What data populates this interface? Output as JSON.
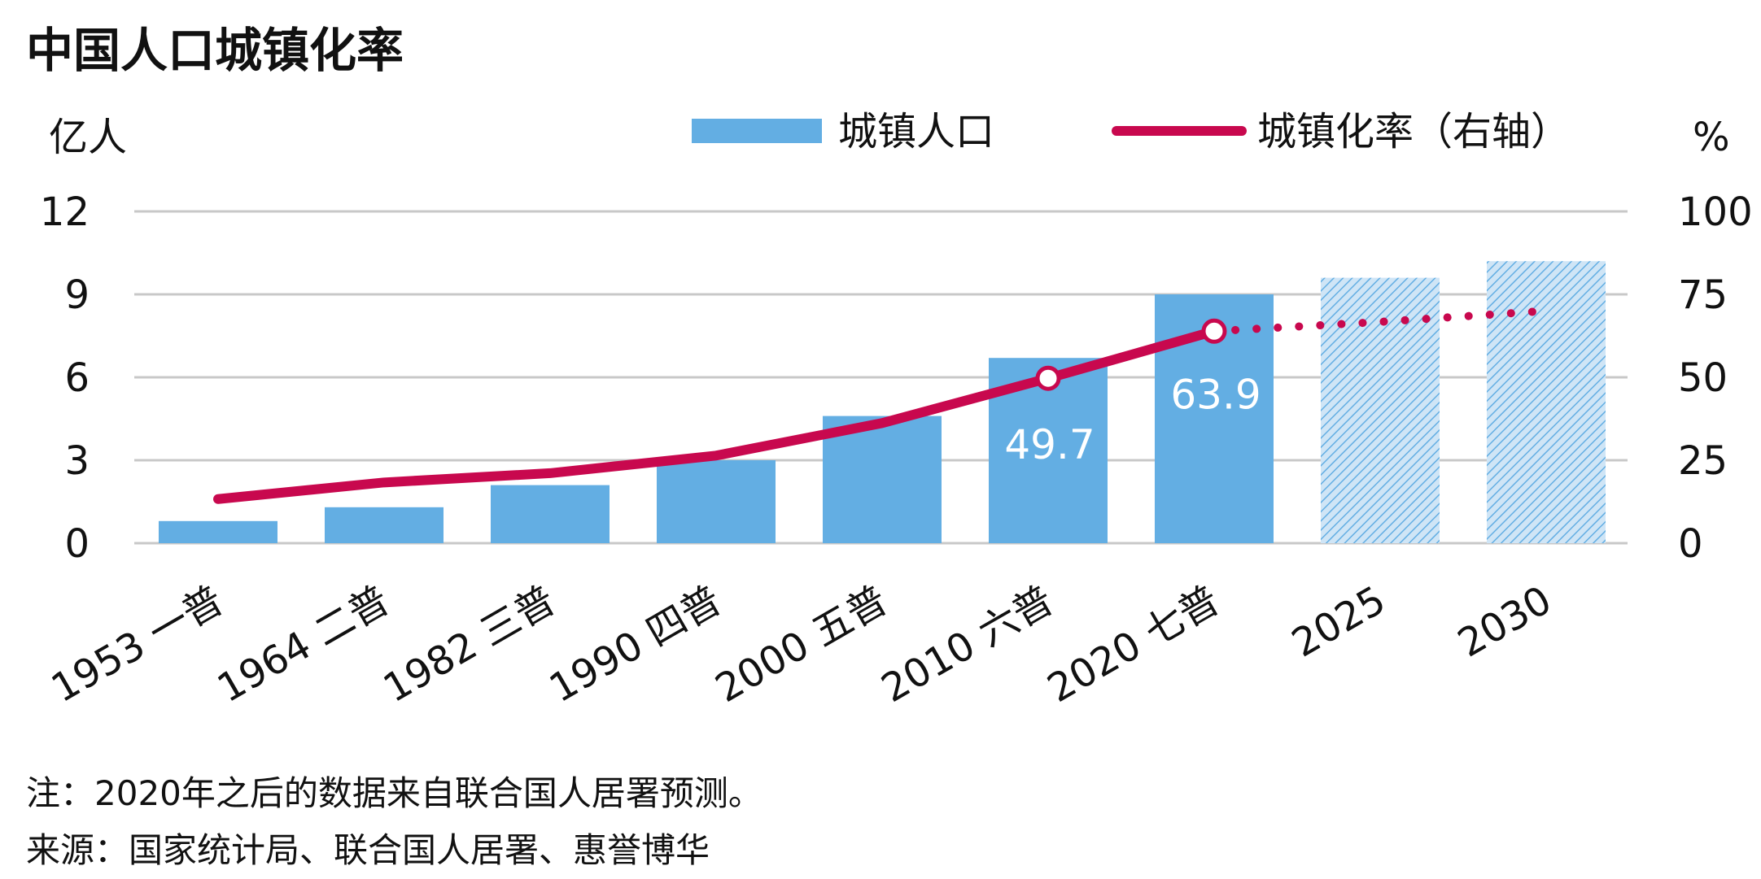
{
  "title": "中国人口城镇化率",
  "left_unit": "亿人",
  "right_unit": "%",
  "legend": {
    "bar_label": "城镇人口",
    "line_label": "城镇化率（右轴）"
  },
  "colors": {
    "bar": "#63aee3",
    "bar_projected": "#a8d0ef",
    "line": "#c8084e",
    "grid": "#c8c8c8"
  },
  "chart_data": {
    "type": "bar",
    "title": "中国人口城镇化率",
    "categories": [
      "1953 一普",
      "1964 二普",
      "1982 三普",
      "1990 四普",
      "2000 五普",
      "2010 六普",
      "2020 七普",
      "2025",
      "2030"
    ],
    "series": [
      {
        "name": "城镇人口",
        "type": "bar",
        "axis": "left",
        "values": [
          0.8,
          1.3,
          2.1,
          3.0,
          4.6,
          6.7,
          9.0,
          9.6,
          10.2
        ]
      },
      {
        "name": "城镇化率（右轴）",
        "type": "line",
        "axis": "right",
        "values": [
          13.3,
          18.3,
          21.1,
          26.4,
          36.2,
          49.7,
          63.9,
          66.7,
          70.0
        ],
        "projected_from_index": 6
      }
    ],
    "projected_categories": [
      "2025",
      "2030"
    ],
    "data_labels": [
      {
        "index": 5,
        "text": "49.7"
      },
      {
        "index": 6,
        "text": "63.9"
      }
    ],
    "left_axis": {
      "label": "亿人",
      "ylim": [
        0,
        12
      ],
      "ticks": [
        "0",
        "3",
        "6",
        "9",
        "12"
      ]
    },
    "right_axis": {
      "label": "%",
      "ylim": [
        0,
        100
      ],
      "ticks": [
        "0",
        "25",
        "50",
        "75",
        "100"
      ]
    },
    "grid": true,
    "legend_position": "top"
  },
  "notes": [
    "注：2020年之后的数据来自联合国人居署预测。",
    "来源：国家统计局、联合国人居署、惠誉博华"
  ]
}
